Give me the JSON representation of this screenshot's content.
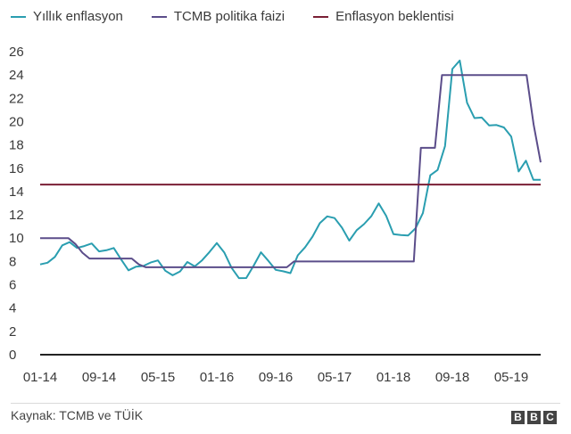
{
  "legend": [
    {
      "label": "Yıllık enflasyon",
      "color": "#2a9eb0"
    },
    {
      "label": "TCMB politika faizi",
      "color": "#5b4d8a"
    },
    {
      "label": "Enflasyon beklentisi",
      "color": "#7a1f35"
    }
  ],
  "source": "Kaynak: TCMB ve TÜİK",
  "logo": {
    "letters": [
      "B",
      "B",
      "C"
    ]
  },
  "chart_data": {
    "type": "line",
    "title": "",
    "xlabel": "",
    "ylabel": "",
    "ylim": [
      0,
      26
    ],
    "yticks": [
      0,
      2,
      4,
      6,
      8,
      10,
      12,
      14,
      16,
      18,
      20,
      22,
      24,
      26
    ],
    "xticks": [
      "01-14",
      "09-14",
      "05-15",
      "01-16",
      "09-16",
      "05-17",
      "01-18",
      "09-18",
      "05-19"
    ],
    "x_start": "01-14",
    "grid": false,
    "legend_position": "top",
    "series": [
      {
        "name": "Yıllık enflasyon",
        "color": "#2a9eb0",
        "values": [
          7.75,
          7.89,
          8.39,
          9.38,
          9.66,
          9.16,
          9.32,
          9.54,
          8.86,
          8.96,
          9.15,
          8.17,
          7.24,
          7.55,
          7.61,
          7.91,
          8.09,
          7.2,
          6.81,
          7.14,
          7.95,
          7.58,
          8.1,
          8.81,
          9.58,
          8.78,
          7.46,
          6.57,
          6.58,
          7.64,
          8.79,
          8.05,
          7.28,
          7.16,
          7.0,
          8.53,
          9.22,
          10.13,
          11.29,
          11.87,
          11.72,
          10.9,
          9.79,
          10.68,
          11.2,
          11.9,
          12.98,
          11.92,
          10.35,
          10.26,
          10.23,
          10.85,
          12.15,
          15.39,
          15.85,
          17.9,
          24.52,
          25.24,
          21.62,
          20.3,
          20.35,
          19.67,
          19.71,
          19.5,
          18.71,
          15.72,
          16.65,
          15.01,
          15.0
        ],
        "line_style": "solid"
      },
      {
        "name": "TCMB politika faizi",
        "color": "#5b4d8a",
        "values": [
          10,
          10,
          10,
          10,
          10,
          9.5,
          8.75,
          8.25,
          8.25,
          8.25,
          8.25,
          8.25,
          8.25,
          8.25,
          7.75,
          7.5,
          7.5,
          7.5,
          7.5,
          7.5,
          7.5,
          7.5,
          7.5,
          7.5,
          7.5,
          7.5,
          7.5,
          7.5,
          7.5,
          7.5,
          7.5,
          7.5,
          7.5,
          7.5,
          7.5,
          7.5,
          8,
          8,
          8,
          8,
          8,
          8,
          8,
          8,
          8,
          8,
          8,
          8,
          8,
          8,
          8,
          8,
          8,
          8,
          17.75,
          17.75,
          17.75,
          24,
          24,
          24,
          24,
          24,
          24,
          24,
          24,
          24,
          24,
          24,
          24,
          24,
          19.75,
          16.5
        ],
        "line_style": "solid"
      },
      {
        "name": "Enflasyon beklentisi",
        "color": "#7a1f35",
        "values": [
          14.6,
          14.6
        ],
        "line_style": "solid"
      }
    ]
  }
}
